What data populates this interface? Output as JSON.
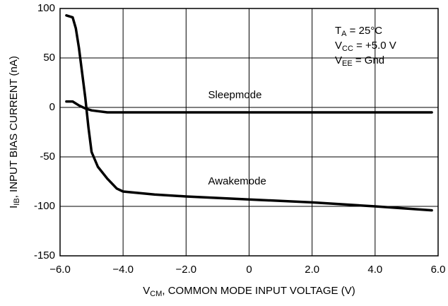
{
  "chart_data": {
    "type": "line",
    "xlabel": {
      "main": "V",
      "sub": "CM",
      "rest": ", COMMON MODE INPUT VOLTAGE (V)"
    },
    "ylabel": {
      "main": "I",
      "sub": "IB",
      "rest": ", INPUT BIAS CURRENT (nA)"
    },
    "annotations": [
      {
        "main": "T",
        "sub": "A",
        "rest": " = 25°C"
      },
      {
        "main": "V",
        "sub": "CC",
        "rest": " = +5.0 V"
      },
      {
        "main": "V",
        "sub": "EE",
        "rest": " = Gnd"
      }
    ],
    "xlim": [
      -6,
      6
    ],
    "ylim": [
      -150,
      100
    ],
    "xticks": [
      {
        "value": -6,
        "label": "−6.0"
      },
      {
        "value": -4,
        "label": "−4.0"
      },
      {
        "value": -2,
        "label": "−2.0"
      },
      0,
      {
        "value": 2,
        "label": "2.0"
      },
      {
        "value": 4,
        "label": "4.0"
      },
      {
        "value": 6,
        "label": "6.0"
      }
    ],
    "yticks": [
      100,
      50,
      0,
      -50,
      -100,
      -150
    ],
    "grid": true,
    "series": [
      {
        "name": "Sleepmode",
        "color": "#000000",
        "x": [
          -5.8,
          -5.6,
          -5.4,
          -5.2,
          -5.0,
          -4.5,
          -4.0,
          0,
          5.8
        ],
        "values": [
          6,
          6,
          2,
          -1,
          -3,
          -5,
          -5,
          -5,
          -5
        ]
      },
      {
        "name": "Awakemode",
        "color": "#000000",
        "x": [
          -5.8,
          -5.6,
          -5.5,
          -5.4,
          -5.3,
          -5.2,
          -5.1,
          -5.0,
          -4.8,
          -4.5,
          -4.2,
          -4.0,
          -3.0,
          -2.0,
          0,
          2,
          4,
          5.8
        ],
        "values": [
          93,
          91,
          80,
          60,
          35,
          10,
          -20,
          -45,
          -60,
          -72,
          -82,
          -85,
          -88,
          -90,
          -93,
          -96,
          -100,
          -104
        ]
      }
    ]
  }
}
